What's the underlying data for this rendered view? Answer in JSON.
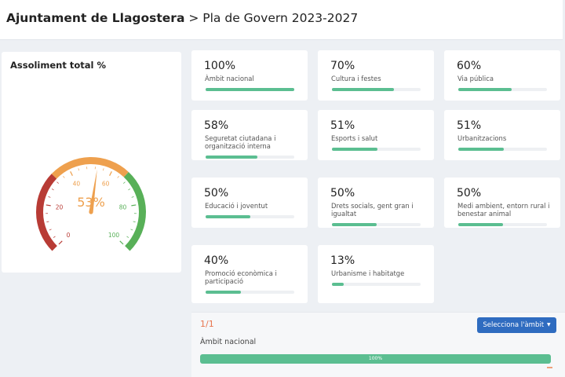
{
  "header": {
    "organization": "Ajuntament de Llagostera",
    "separator": ">",
    "plan": "Pla de Govern 2023-2027"
  },
  "gauge": {
    "title": "Assoliment total %",
    "value": 53,
    "value_label": "53%",
    "min": 0,
    "max": 100,
    "tick_labels": [
      "0",
      "20",
      "40",
      "60",
      "80",
      "100"
    ],
    "bands": [
      {
        "from": 0,
        "to": 33,
        "color": "#b83b35"
      },
      {
        "from": 33,
        "to": 66,
        "color": "#eea04e"
      },
      {
        "from": 66,
        "to": 100,
        "color": "#58b058"
      }
    ],
    "needle_color": "#eea04e"
  },
  "ambits": [
    {
      "percent": "100%",
      "value": 100,
      "label": "Àmbit nacional"
    },
    {
      "percent": "70%",
      "value": 70,
      "label": "Cultura i festes"
    },
    {
      "percent": "60%",
      "value": 60,
      "label": "Via pública"
    },
    {
      "percent": "58%",
      "value": 58,
      "label": "Seguretat ciutadana i organització interna"
    },
    {
      "percent": "51%",
      "value": 51,
      "label": "Esports i salut"
    },
    {
      "percent": "51%",
      "value": 51,
      "label": "Urbanitzacions"
    },
    {
      "percent": "50%",
      "value": 50,
      "label": "Educació i joventut"
    },
    {
      "percent": "50%",
      "value": 50,
      "label": "Drets socials, gent gran i igualtat"
    },
    {
      "percent": "50%",
      "value": 50,
      "label": "Medi ambient, entorn rural i benestar animal"
    },
    {
      "percent": "40%",
      "value": 40,
      "label": "Promoció econòmica i participació"
    },
    {
      "percent": "13%",
      "value": 13,
      "label": "Urbanisme i habitatge"
    }
  ],
  "detail": {
    "page_indicator": "1/1",
    "select_button": "Selecciona l'àmbit",
    "caret_icon": "caret-down-icon",
    "ambit_name": "Àmbit nacional",
    "progress": 100,
    "progress_label": "100%"
  },
  "colors": {
    "bar": "#5bbe91",
    "button": "#2f6cc0",
    "accent": "#e8734d"
  }
}
